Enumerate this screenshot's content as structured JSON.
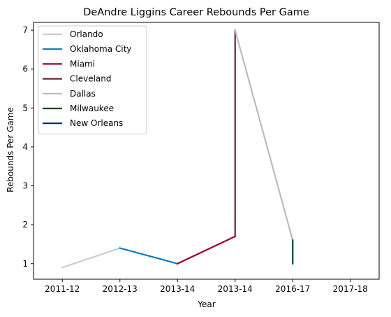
{
  "chart_data": {
    "type": "line",
    "title": "DeAndre Liggins Career Rebounds Per Game",
    "xlabel": "Year",
    "ylabel": "Rebounds Per Game",
    "categories": [
      "2011-12",
      "2012-13",
      "2013-14",
      "2013-14",
      "2016-17",
      "2017-18"
    ],
    "ylim": [
      0.6,
      7.2
    ],
    "yticks": [
      1,
      2,
      3,
      4,
      5,
      6,
      7
    ],
    "grid": false,
    "legend_position": "top-left",
    "series": [
      {
        "name": "Orlando",
        "color": "#c4ced4",
        "points": [
          [
            0,
            0.9
          ],
          [
            1,
            1.4
          ]
        ]
      },
      {
        "name": "Oklahoma City",
        "color": "#007ac1",
        "points": [
          [
            1,
            1.4
          ],
          [
            2,
            1.0
          ]
        ]
      },
      {
        "name": "Miami",
        "color": "#98002e",
        "points": [
          [
            2,
            1.0
          ],
          [
            3,
            1.7
          ]
        ]
      },
      {
        "name": "Cleveland",
        "color": "#6f263d",
        "points": [
          [
            3,
            1.7
          ],
          [
            3,
            7.0
          ]
        ]
      },
      {
        "name": "Dallas",
        "color": "#bbbbbb",
        "points": [
          [
            3,
            7.0
          ],
          [
            4,
            1.6
          ]
        ]
      },
      {
        "name": "Milwaukee",
        "color": "#00471b",
        "points": [
          [
            4,
            1.6
          ],
          [
            4,
            1.0
          ]
        ]
      },
      {
        "name": "New Orleans",
        "color": "#002b5c",
        "points": []
      }
    ]
  }
}
